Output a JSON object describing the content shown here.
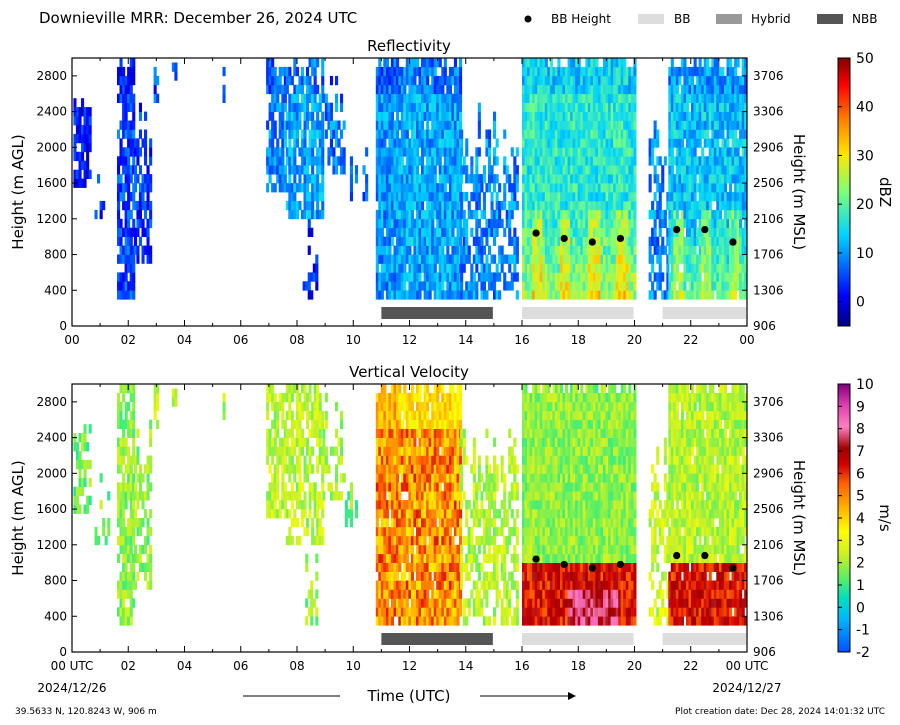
{
  "header": {
    "title": "Downieville MRR:  December 26, 2024 UTC",
    "legend": [
      {
        "label": "BB Height",
        "symbol": "dot",
        "color": "#000000"
      },
      {
        "label": "BB",
        "symbol": "bar",
        "color": "#dddddd"
      },
      {
        "label": "Hybrid",
        "symbol": "bar",
        "color": "#999999"
      },
      {
        "label": "NBB",
        "symbol": "bar",
        "color": "#555555"
      }
    ]
  },
  "footer": {
    "location": "39.5633 N, 120.8243 W, 906 m",
    "creation": "Plot creation date: Dec 28, 2024 14:01:32 UTC",
    "xlabel": "Time (UTC)",
    "start_date": "2024/12/26",
    "end_date": "2024/12/27"
  },
  "chart_data": [
    {
      "type": "heatmap",
      "title": "Reflectivity",
      "ylabel": "Height (m AGL)",
      "ylabel_right": "Height (m MSL)",
      "xlim": [
        0,
        24
      ],
      "ylim": [
        0,
        3000
      ],
      "xticks": [
        "00",
        "02",
        "04",
        "06",
        "08",
        "10",
        "12",
        "14",
        "16",
        "18",
        "20",
        "22",
        "00"
      ],
      "yticks": [
        0,
        400,
        800,
        1200,
        1600,
        2000,
        2400,
        2800
      ],
      "yticks_right": [
        906,
        1306,
        1706,
        2106,
        2506,
        2906,
        3306,
        3706
      ],
      "colorbar": {
        "label": "dBZ",
        "min": -5,
        "max": 50,
        "ticks": [
          0,
          10,
          20,
          30,
          40,
          50
        ],
        "colormap": "jet"
      },
      "bb_height": [
        {
          "time": 16.5,
          "height": 1040
        },
        {
          "time": 17.5,
          "height": 980
        },
        {
          "time": 18.5,
          "height": 940
        },
        {
          "time": 19.5,
          "height": 980
        },
        {
          "time": 21.5,
          "height": 1080
        },
        {
          "time": 22.5,
          "height": 1080
        },
        {
          "time": 23.5,
          "height": 940
        }
      ],
      "regime_bars": [
        {
          "type": "NBB",
          "start": 11.0,
          "end": 15.0
        },
        {
          "type": "BB",
          "start": 16.0,
          "end": 20.0
        },
        {
          "type": "BB",
          "start": 21.0,
          "end": 24.0
        }
      ]
    },
    {
      "type": "heatmap",
      "title": "Vertical Velocity",
      "ylabel": "Height (m AGL)",
      "ylabel_right": "Height (m MSL)",
      "xlim": [
        0,
        24
      ],
      "ylim": [
        0,
        3000
      ],
      "xticks": [
        "00 UTC",
        "02",
        "04",
        "06",
        "08",
        "10",
        "12",
        "14",
        "16",
        "18",
        "20",
        "22",
        "00 UTC"
      ],
      "yticks": [
        0,
        400,
        800,
        1200,
        1600,
        2000,
        2400,
        2800
      ],
      "yticks_right": [
        906,
        1306,
        1706,
        2106,
        2506,
        2906,
        3306,
        3706
      ],
      "colorbar": {
        "label": "m/s",
        "min": -2,
        "max": 10,
        "ticks": [
          -2,
          -1,
          0,
          1,
          2,
          3,
          4,
          5,
          6,
          7,
          8,
          9,
          10
        ],
        "colormap": "velocity"
      },
      "bb_height": [
        {
          "time": 16.5,
          "height": 1040
        },
        {
          "time": 17.5,
          "height": 980
        },
        {
          "time": 18.5,
          "height": 940
        },
        {
          "time": 19.5,
          "height": 980
        },
        {
          "time": 21.5,
          "height": 1080
        },
        {
          "time": 22.5,
          "height": 1080
        },
        {
          "time": 23.5,
          "height": 940
        }
      ],
      "regime_bars": [
        {
          "type": "NBB",
          "start": 11.0,
          "end": 15.0
        },
        {
          "type": "BB",
          "start": 16.0,
          "end": 20.0
        },
        {
          "type": "BB",
          "start": 21.0,
          "end": 24.0
        }
      ]
    }
  ]
}
